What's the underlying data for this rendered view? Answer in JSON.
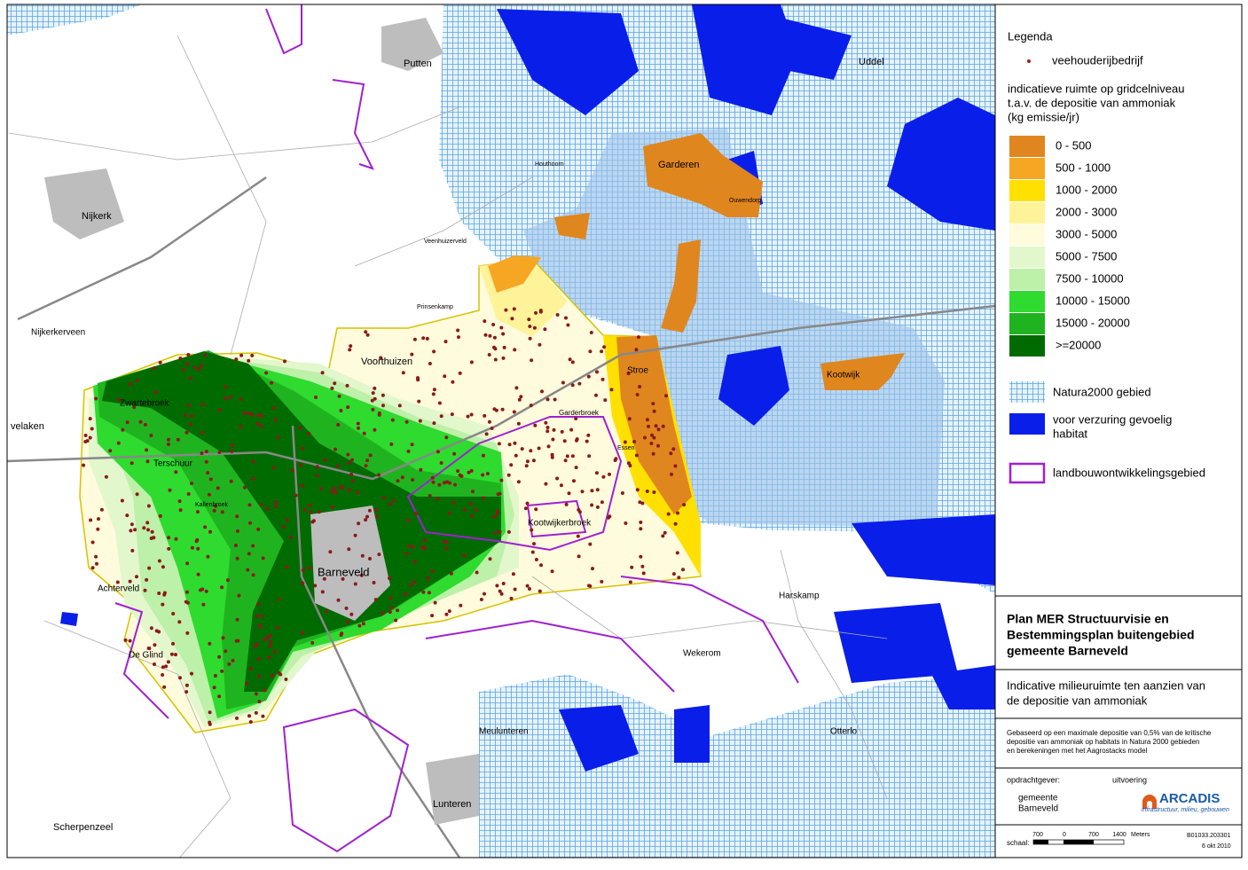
{
  "map": {
    "places": [
      {
        "label": "Putten"
      },
      {
        "label": "Uddel"
      },
      {
        "label": "Garderen"
      },
      {
        "label": "Houthoorn"
      },
      {
        "label": "Ouwendorp"
      },
      {
        "label": "Nijkerk"
      },
      {
        "label": "Veenhuizerveld"
      },
      {
        "label": "Nijkerkerveen"
      },
      {
        "label": "Prinsenkamp"
      },
      {
        "label": "Voorthuizen"
      },
      {
        "label": "Stroe"
      },
      {
        "label": "Kootwijk"
      },
      {
        "label": "Zwartebroek"
      },
      {
        "label": "velaken"
      },
      {
        "label": "Terschuur"
      },
      {
        "label": "Kallenbroek"
      },
      {
        "label": "Garderbroek"
      },
      {
        "label": "Essen"
      },
      {
        "label": "Kootwijkerbroek"
      },
      {
        "label": "Barneveld"
      },
      {
        "label": "Achterveld"
      },
      {
        "label": "De Glind"
      },
      {
        "label": "Harskamp"
      },
      {
        "label": "Wekerom"
      },
      {
        "label": "Meulunteren"
      },
      {
        "label": "Otterlo"
      },
      {
        "label": "Lunteren"
      },
      {
        "label": "Scherpenzeel"
      }
    ]
  },
  "legend": {
    "title": "Legenda",
    "point": "veehouderijbedrijf",
    "heading": [
      "indicatieve ruimte op gridcelniveau",
      "t.a.v. de depositie van ammoniak",
      "(kg emissie/jr)"
    ],
    "classes": [
      {
        "label": "0 - 500",
        "color": "#e0861e"
      },
      {
        "label": "500 - 1000",
        "color": "#f5a623"
      },
      {
        "label": "1000 - 2000",
        "color": "#ffe000"
      },
      {
        "label": "2000 - 3000",
        "color": "#fff39a"
      },
      {
        "label": "3000 - 5000",
        "color": "#fffbdc"
      },
      {
        "label": "5000 - 7500",
        "color": "#e2f7cc"
      },
      {
        "label": "7500 - 10000",
        "color": "#bdf0a8"
      },
      {
        "label": "10000 - 15000",
        "color": "#2edb2e"
      },
      {
        "label": "15000 - 20000",
        "color": "#1fb41f"
      },
      {
        "label": ">=20000",
        "color": "#006b00"
      }
    ],
    "natura": "Natura2000 gebied",
    "habitat": [
      "voor verzuring gevoelig",
      "habitat"
    ],
    "development": "landbouwontwikkelingsgebied"
  },
  "title_block": {
    "title": [
      "Plan MER Structuurvisie en",
      "Bestemmingsplan buitengebied",
      "gemeente Barneveld"
    ],
    "subtitle": [
      "Indicative milieuruimte ten aanzien van",
      "de depositie van ammoniak"
    ],
    "note": [
      "Gebaseerd op een maximale depositie van 0,5% van de kritische",
      "depositie van ammoniak op habitats in Natura 2000 gebieden",
      " en berekeningen met het Aagrostacks model"
    ],
    "client_label": "opdrachtgever:",
    "contractor_label": "uitvoering",
    "client": [
      "gemeente",
      "Barneveld"
    ],
    "logo": "ARCADIS",
    "tagline": "infrastructuur, milieu, gebouwen",
    "scale_label": "schaal:",
    "scale_ticks": [
      700,
      0,
      700,
      1400
    ],
    "scale_unit": "Meters",
    "project_no": "B01033.203301",
    "date": "6 okt 2010"
  }
}
